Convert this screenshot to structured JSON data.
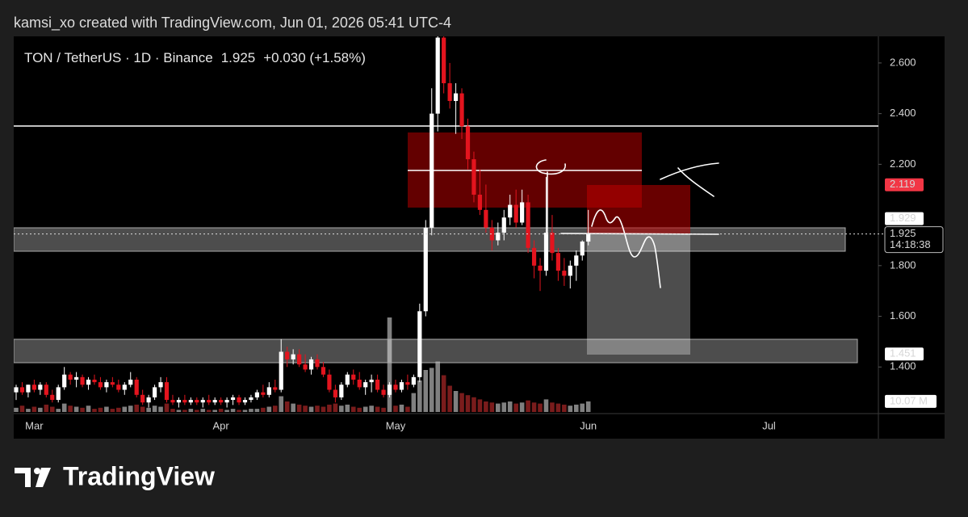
{
  "header": "kamsi_xo created with TradingView.com, Jun 01, 2026 05:41 UTC-4",
  "brand": "TradingView",
  "chart_data": {
    "type": "candlestick",
    "title": "TON / TetherUS · 1D · Binance",
    "last_price_text": "1.925",
    "change_text": "+0.030 (+1.58%)",
    "up_color": "#ffffff",
    "down_color": "#e3141e",
    "volume_up_color": "#808080",
    "volume_down_color": "#7a1c1c",
    "categories": [
      null,
      null,
      null,
      "Mar",
      null,
      null,
      null,
      null,
      null,
      null,
      null,
      null,
      null,
      null,
      null,
      null,
      null,
      null,
      null,
      null,
      null,
      null,
      null,
      null,
      null,
      null,
      null,
      null,
      null,
      null,
      null,
      null,
      null,
      null,
      "Apr",
      null,
      null,
      null,
      null,
      null,
      null,
      null,
      null,
      null,
      null,
      null,
      null,
      null,
      null,
      null,
      null,
      null,
      null,
      null,
      null,
      null,
      null,
      null,
      null,
      null,
      null,
      null,
      null,
      "May",
      null,
      null,
      null,
      null,
      null,
      null,
      null,
      null,
      null,
      null,
      null,
      null,
      null,
      null,
      null,
      null,
      null,
      null,
      null,
      null,
      null,
      null,
      null,
      null,
      null,
      null,
      null,
      null,
      null,
      null,
      null,
      "Jun",
      null,
      null,
      null,
      null,
      null,
      null,
      null,
      null,
      null,
      null,
      null,
      null,
      null,
      null,
      null,
      null,
      null,
      null,
      null,
      null,
      null,
      null,
      null,
      null,
      null,
      null,
      null,
      null,
      null,
      "Jul"
    ],
    "open": [
      1.3,
      1.32,
      1.3,
      1.33,
      1.31,
      1.33,
      1.29,
      1.27,
      1.32,
      1.37,
      1.35,
      1.36,
      1.33,
      1.35,
      1.34,
      1.32,
      1.34,
      1.33,
      1.31,
      1.33,
      1.35,
      1.29,
      1.26,
      1.28,
      1.32,
      1.34,
      1.27,
      1.26,
      1.27,
      1.26,
      1.27,
      1.26,
      1.27,
      1.26,
      1.27,
      1.26,
      1.27,
      1.28,
      1.26,
      1.27,
      1.28,
      1.3,
      1.29,
      1.32,
      1.31,
      1.46,
      1.43,
      1.45,
      1.41,
      1.39,
      1.43,
      1.4,
      1.37,
      1.31,
      1.28,
      1.33,
      1.37,
      1.35,
      1.32,
      1.34,
      1.35,
      1.31,
      1.29,
      1.33,
      1.31,
      1.34,
      1.33,
      1.36,
      1.62,
      1.95,
      2.4,
      2.7,
      2.52,
      2.45,
      2.48,
      2.35,
      2.22,
      2.08,
      2.02,
      1.95,
      1.9,
      1.93,
      1.99,
      2.04,
      1.97,
      2.05,
      1.87,
      1.8,
      1.78,
      1.93,
      1.85,
      1.78,
      1.76,
      1.8,
      1.84,
      1.895,
      null,
      null,
      null,
      null,
      null,
      null,
      null,
      null,
      null,
      null,
      null,
      null,
      null,
      null,
      null,
      null,
      null,
      null,
      null,
      null,
      null,
      null,
      null,
      null,
      null,
      null,
      null,
      null,
      null,
      null
    ],
    "high": [
      1.33,
      1.34,
      1.33,
      1.35,
      1.34,
      1.34,
      1.31,
      1.33,
      1.4,
      1.38,
      1.38,
      1.37,
      1.36,
      1.37,
      1.36,
      1.35,
      1.36,
      1.35,
      1.34,
      1.38,
      1.36,
      1.31,
      1.29,
      1.33,
      1.36,
      1.36,
      1.29,
      1.28,
      1.29,
      1.28,
      1.28,
      1.28,
      1.29,
      1.28,
      1.28,
      1.28,
      1.29,
      1.29,
      1.28,
      1.29,
      1.31,
      1.33,
      1.34,
      1.35,
      1.51,
      1.48,
      1.47,
      1.47,
      1.45,
      1.44,
      1.45,
      1.42,
      1.39,
      1.33,
      1.34,
      1.38,
      1.39,
      1.38,
      1.35,
      1.37,
      1.37,
      1.33,
      1.34,
      1.35,
      1.35,
      1.37,
      1.37,
      1.65,
      1.98,
      2.5,
      2.75,
      2.72,
      2.6,
      2.52,
      2.5,
      2.38,
      2.25,
      2.18,
      2.12,
      1.98,
      1.97,
      2.02,
      2.08,
      2.1,
      2.1,
      2.08,
      1.9,
      1.83,
      2.15,
      2.0,
      1.87,
      1.83,
      1.82,
      1.86,
      1.9,
      2.02,
      null,
      null,
      null,
      null,
      null,
      null,
      null,
      null,
      null,
      null,
      null,
      null,
      null,
      null,
      null,
      null,
      null,
      null,
      null,
      null,
      null,
      null,
      null,
      null,
      null,
      null,
      null,
      null,
      null,
      null
    ],
    "low": [
      1.27,
      1.29,
      1.28,
      1.3,
      1.29,
      1.28,
      1.26,
      1.26,
      1.31,
      1.33,
      1.32,
      1.32,
      1.31,
      1.33,
      1.31,
      1.3,
      1.32,
      1.3,
      1.29,
      1.32,
      1.28,
      1.25,
      1.24,
      1.27,
      1.3,
      1.26,
      1.25,
      1.24,
      1.25,
      1.25,
      1.25,
      1.24,
      1.25,
      1.25,
      1.25,
      1.24,
      1.25,
      1.25,
      1.25,
      1.26,
      1.27,
      1.28,
      1.28,
      1.3,
      1.3,
      1.4,
      1.41,
      1.4,
      1.38,
      1.37,
      1.39,
      1.36,
      1.3,
      1.26,
      1.27,
      1.32,
      1.33,
      1.31,
      1.29,
      1.3,
      1.3,
      1.28,
      1.28,
      1.3,
      1.3,
      1.31,
      1.32,
      1.34,
      1.6,
      1.92,
      2.33,
      2.48,
      2.42,
      2.32,
      2.3,
      2.18,
      2.05,
      2.0,
      1.93,
      1.86,
      1.88,
      1.9,
      1.96,
      1.95,
      1.96,
      1.85,
      1.75,
      1.7,
      1.76,
      1.82,
      1.74,
      1.72,
      1.71,
      1.74,
      1.82,
      1.88,
      null,
      null,
      null,
      null,
      null,
      null,
      null,
      null,
      null,
      null,
      null,
      null,
      null,
      null,
      null,
      null,
      null,
      null,
      null,
      null,
      null,
      null,
      null,
      null,
      null,
      null,
      null,
      null,
      null,
      null
    ],
    "close": [
      1.32,
      1.3,
      1.33,
      1.31,
      1.33,
      1.29,
      1.27,
      1.32,
      1.37,
      1.35,
      1.36,
      1.33,
      1.35,
      1.34,
      1.32,
      1.34,
      1.33,
      1.31,
      1.33,
      1.35,
      1.29,
      1.26,
      1.28,
      1.32,
      1.34,
      1.27,
      1.26,
      1.27,
      1.26,
      1.27,
      1.26,
      1.27,
      1.26,
      1.27,
      1.26,
      1.27,
      1.28,
      1.26,
      1.27,
      1.28,
      1.3,
      1.29,
      1.32,
      1.31,
      1.46,
      1.43,
      1.45,
      1.41,
      1.39,
      1.43,
      1.4,
      1.37,
      1.31,
      1.28,
      1.33,
      1.37,
      1.35,
      1.32,
      1.34,
      1.35,
      1.31,
      1.29,
      1.33,
      1.31,
      1.34,
      1.33,
      1.36,
      1.62,
      1.95,
      2.4,
      2.7,
      2.52,
      2.45,
      2.48,
      2.35,
      2.22,
      2.08,
      2.02,
      1.95,
      1.9,
      1.93,
      1.99,
      2.04,
      1.97,
      2.05,
      1.87,
      1.8,
      1.78,
      1.93,
      1.85,
      1.78,
      1.76,
      1.8,
      1.84,
      1.895,
      1.925,
      null,
      null,
      null,
      null,
      null,
      null,
      null,
      null,
      null,
      null,
      null,
      null,
      null,
      null,
      null,
      null,
      null,
      null,
      null,
      null,
      null,
      null,
      null,
      null,
      null,
      null,
      null,
      null,
      null,
      null
    ],
    "volume": [
      4,
      6,
      3,
      5,
      4,
      7,
      5,
      3,
      8,
      6,
      5,
      4,
      6,
      3,
      4,
      5,
      3,
      4,
      5,
      6,
      7,
      5,
      4,
      6,
      5,
      8,
      3,
      2,
      2,
      3,
      2,
      3,
      2,
      2,
      3,
      2,
      3,
      2,
      2,
      3,
      3,
      4,
      5,
      6,
      15,
      10,
      8,
      7,
      6,
      5,
      6,
      5,
      7,
      8,
      6,
      7,
      5,
      4,
      5,
      6,
      5,
      4,
      90,
      6,
      7,
      5,
      18,
      30,
      40,
      42,
      48,
      35,
      25,
      20,
      18,
      16,
      14,
      12,
      10,
      9,
      8,
      9,
      10,
      8,
      9,
      11,
      9,
      8,
      12,
      9,
      8,
      7,
      6,
      7,
      8,
      10.07,
      null,
      null,
      null,
      null,
      null,
      null,
      null,
      null,
      null,
      null,
      null,
      null,
      null,
      null,
      null,
      null,
      null,
      null,
      null,
      null,
      null,
      null,
      null,
      null,
      null,
      null,
      null,
      null,
      null,
      null
    ],
    "volume_label": "10.07 M",
    "vlim": [
      0,
      140
    ],
    "ylim": [
      1.216,
      2.705
    ],
    "yticks": [
      {
        "value": 2.6,
        "label": "2.600"
      },
      {
        "value": 2.4,
        "label": "2.400"
      },
      {
        "value": 2.2,
        "label": "2.200"
      },
      {
        "value": 1.8,
        "label": "1.800"
      },
      {
        "value": 1.6,
        "label": "1.600"
      },
      {
        "value": 1.4,
        "label": "1.400"
      }
    ],
    "countdown": "14:18:38",
    "price_markers": [
      {
        "value": 2.119,
        "label": "2.119",
        "color": "#f23645"
      },
      {
        "value": 1.929,
        "label": "1.929",
        "color": "#ffffff"
      },
      {
        "value": 1.451,
        "label": "1.451",
        "color": "#ffffff"
      }
    ]
  }
}
